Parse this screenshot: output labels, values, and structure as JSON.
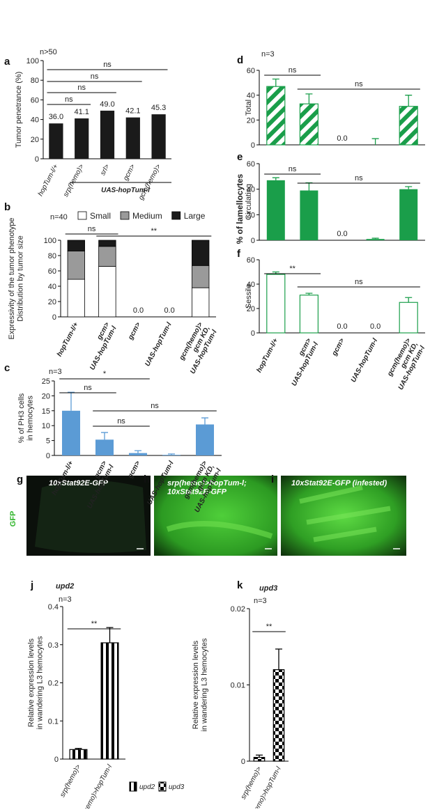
{
  "chart_data": [
    {
      "panel": "a",
      "type": "bar",
      "sample_size": "n>50",
      "ylabel": "Tumor penetrance (%)",
      "categories": [
        "hopTum-l/+",
        "srp(hemo)>",
        "srl>",
        "gcm>",
        "gcm(hemo)>"
      ],
      "values": [
        36.0,
        41.1,
        49.0,
        42.1,
        45.3
      ],
      "value_labels": [
        "36.0",
        "41.1",
        "49.0",
        "42.1",
        "45.3"
      ],
      "color": "#1a1a1a",
      "fill_style": "solid",
      "ylim": [
        0,
        100
      ],
      "yticks": [
        0,
        20,
        40,
        60,
        80,
        100
      ],
      "grid": false,
      "group_label": "UAS-hopTum-l",
      "significance": [
        "ns",
        "ns",
        "ns",
        "ns"
      ]
    },
    {
      "panel": "b",
      "type": "bar",
      "stacked": true,
      "sample_size": "n=40",
      "ylabel": "Expressivity of the tumor phenotype\nDistribution by tumor size",
      "categories": [
        "hopTum-l/+",
        "gcm>\nUAS-hopTum-l",
        "gcm>",
        "UAS-hopTum-l",
        "gcm(hemo)>\ngcm KD,\nUAS-hopTum-l"
      ],
      "series": [
        {
          "name": "Small",
          "color": "#ffffff",
          "values": [
            49,
            66,
            0,
            0,
            38
          ],
          "value_labels": [
            null,
            null,
            "0.0",
            "0.0",
            null
          ]
        },
        {
          "name": "Medium",
          "color": "#9a9a9a",
          "values": [
            37,
            26,
            0,
            0,
            29
          ]
        },
        {
          "name": "Large",
          "color": "#1a1a1a",
          "values": [
            14,
            8,
            0,
            0,
            33
          ]
        }
      ],
      "ylim": [
        0,
        100
      ],
      "yticks": [
        0,
        20,
        40,
        60,
        80,
        100
      ],
      "grid": false,
      "legend": "top",
      "significance": [
        "ns",
        "**"
      ]
    },
    {
      "panel": "c",
      "type": "bar",
      "sample_size": "n=3",
      "ylabel": "% of PH3 cells\nin hemocytes",
      "categories": [
        "hopTum-l/+",
        "gcm>\nUAS-hopTum-l",
        "gcm>",
        "UAS-hopTum-l",
        "gcm(hemo)>\ngcm KD,\nUAS-hopTum-l"
      ],
      "values": [
        15,
        5.3,
        0.8,
        0.2,
        10.4
      ],
      "errors": [
        6.2,
        2.4,
        0.8,
        0.3,
        2.2
      ],
      "color": "#5b9bd5",
      "fill_style": "solid",
      "ylim": [
        0,
        25
      ],
      "yticks": [
        0,
        5,
        10,
        15,
        20,
        25
      ],
      "grid": false,
      "significance": [
        "ns",
        "*",
        "ns",
        "ns"
      ]
    },
    {
      "panel": "d",
      "type": "bar",
      "sample_size": "n=3",
      "ylabel": "Total",
      "values": [
        47,
        33,
        0,
        0,
        31
      ],
      "value_labels": [
        null,
        null,
        "0.0",
        null,
        null
      ],
      "errors": [
        6,
        8,
        null,
        5,
        9
      ],
      "color": "#1a9e4a",
      "fill_style": "hatched",
      "ylim": [
        0,
        60
      ],
      "yticks": [
        0,
        20,
        40,
        60
      ],
      "grid": false,
      "significance": [
        "ns",
        "ns"
      ]
    },
    {
      "panel": "e",
      "type": "bar",
      "ylabel": "Circulating",
      "values": [
        47,
        39,
        0,
        1,
        40
      ],
      "value_labels": [
        null,
        null,
        "0.0",
        null,
        null
      ],
      "errors": [
        2,
        6,
        null,
        0.6,
        2
      ],
      "color": "#1a9e4a",
      "fill_style": "solid",
      "ylim": [
        0,
        60
      ],
      "yticks": [
        0,
        20,
        40,
        60
      ],
      "grid": false,
      "significance": [
        "ns",
        "ns"
      ]
    },
    {
      "panel": "f",
      "type": "bar",
      "ylabel": "Sessile",
      "categories": [
        "hopTum-l/+",
        "gcm>\nUAS-hopTum-l",
        "gcm>",
        "UAS-hopTum-l",
        "gcm(hemo)>\ngcm KD,\nUAS-hopTum-l"
      ],
      "values": [
        48,
        31,
        0,
        0,
        25
      ],
      "value_labels": [
        null,
        null,
        "0.0",
        "0.0",
        null
      ],
      "errors": [
        2,
        1.5,
        null,
        null,
        4
      ],
      "color": "#1a9e4a",
      "fill_style": "hollow",
      "ylim": [
        0,
        60
      ],
      "yticks": [
        0,
        20,
        40,
        60
      ],
      "grid": false,
      "significance": [
        "**",
        "ns"
      ]
    },
    {
      "panel": "j",
      "type": "bar",
      "title": "upd2",
      "sample_size": "n=3",
      "ylabel": "Relative expression levels\nin wandering L3 hemocytes",
      "categories": [
        "srp(hemo)>",
        "srp(hemo)>hopTum-l"
      ],
      "values": [
        0.025,
        0.305
      ],
      "errors": [
        0.003,
        0.04
      ],
      "color": "#000000",
      "fill_style": "stripes",
      "ylim": [
        0,
        0.4
      ],
      "yticks": [
        0,
        0.1,
        0.2,
        0.3,
        0.4
      ],
      "grid": false,
      "significance": [
        "**"
      ]
    },
    {
      "panel": "k",
      "type": "bar",
      "title": "upd3",
      "sample_size": "n=3",
      "ylabel": "Relative expression levels\nin wandering L3 hemocytes",
      "categories": [
        "srp(hemo)>",
        "srp(hemo)>hopTum-l"
      ],
      "values": [
        0.0005,
        0.012
      ],
      "errors": [
        0.0003,
        0.0027
      ],
      "color": "#000000",
      "fill_style": "checker",
      "ylim": [
        0,
        0.02
      ],
      "yticks": [
        0,
        0.01,
        0.02
      ],
      "grid": false,
      "significance": [
        "**"
      ]
    }
  ],
  "shared_ylabel": "% of lamellocytes",
  "images": [
    {
      "panel": "g",
      "label": "10xStat92E-GFP",
      "channel": "GFP"
    },
    {
      "panel": "h",
      "label": "srp(hemo)>hopTum-l;\n10xStat92E-GFP"
    },
    {
      "panel": "i",
      "label": "10xStat92E-GFP (infested)"
    }
  ],
  "expression_legend": [
    "upd2",
    "upd3"
  ]
}
